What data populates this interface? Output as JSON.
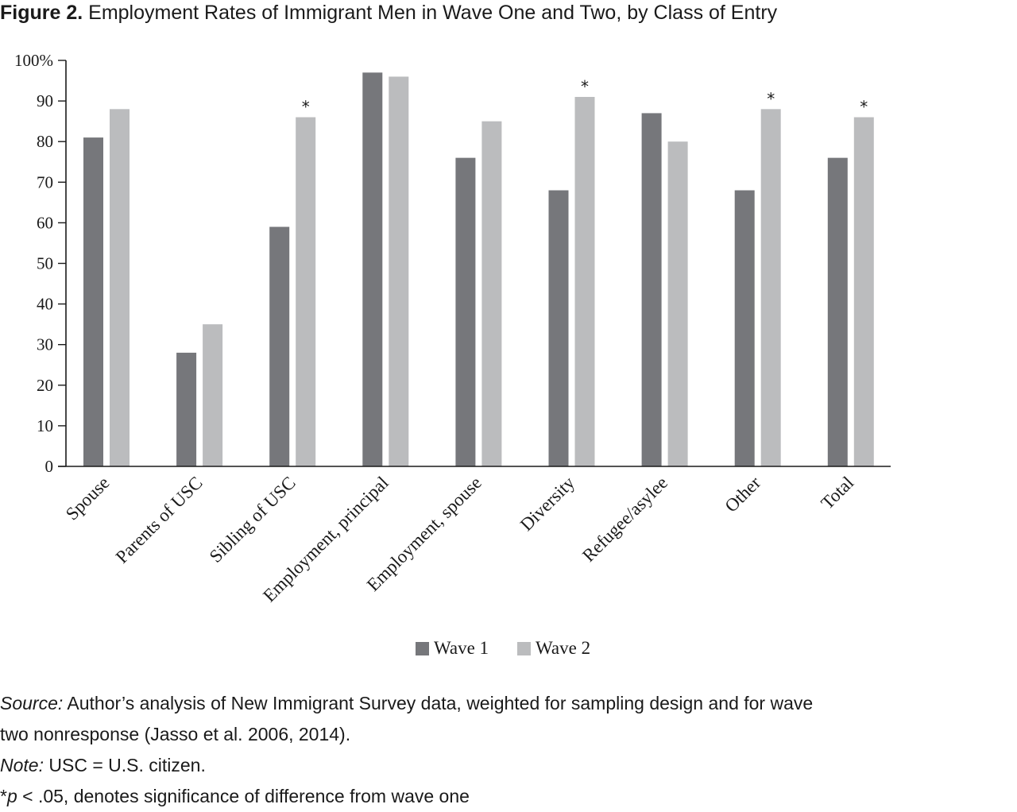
{
  "figure": {
    "label": "Figure 2.",
    "title": "Employment Rates of Immigrant Men in Wave One and Two, by Class of Entry"
  },
  "chart_data": {
    "type": "bar",
    "title": "Employment Rates of Immigrant Men in Wave One and Two, by Class of Entry",
    "categories": [
      "Spouse",
      "Parents of USC",
      "Sibling of USC",
      "Employment, principal",
      "Employment, spouse",
      "Diversity",
      "Refugee/asylee",
      "Other",
      "Total"
    ],
    "series": [
      {
        "name": "Wave 1",
        "color": "#76777b",
        "values": [
          81,
          28,
          59,
          97,
          76,
          68,
          87,
          68,
          76
        ]
      },
      {
        "name": "Wave 2",
        "color": "#bbbcbe",
        "values": [
          88,
          35,
          86,
          96,
          85,
          91,
          80,
          88,
          86
        ]
      }
    ],
    "significant": [
      false,
      false,
      true,
      false,
      false,
      true,
      false,
      true,
      true
    ],
    "significance_marker": "*",
    "ylim": [
      0,
      100
    ],
    "yticks": [
      0,
      10,
      20,
      30,
      40,
      50,
      60,
      70,
      80,
      90,
      100
    ],
    "ytick_labels": [
      "0",
      "10",
      "20",
      "30",
      "40",
      "50",
      "60",
      "70",
      "80",
      "90",
      "100%"
    ],
    "xlabel": "",
    "ylabel": "",
    "legend_position": "bottom-center",
    "grid": false
  },
  "legend": {
    "wave1": "Wave 1",
    "wave2": "Wave 2"
  },
  "footer": {
    "source_label": "Source:",
    "source_text": " Author’s analysis of New Immigrant Survey data, weighted for sampling design and for wave",
    "source_text_2": "two nonresponse (Jasso et al. 2006, 2014).",
    "note_label": "Note:",
    "note_text": " USC = U.S. citizen.",
    "sig_star": "*",
    "sig_p": "p",
    "sig_text": " < .05, denotes significance of difference from wave one"
  }
}
